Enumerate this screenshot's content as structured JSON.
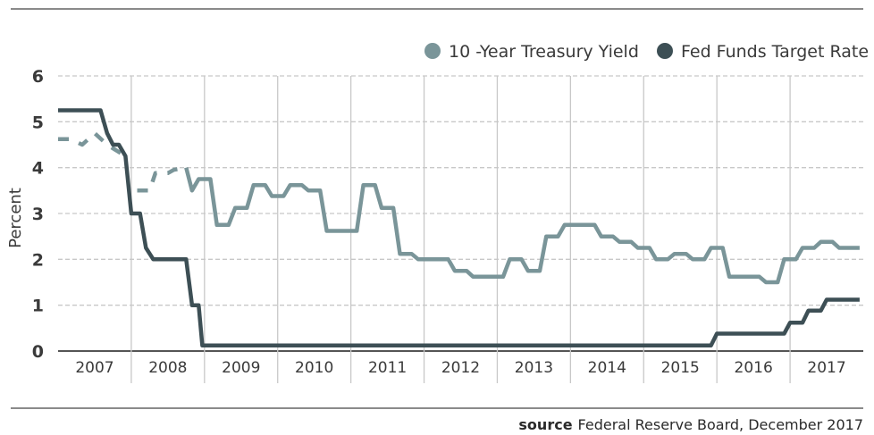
{
  "chart_data": {
    "type": "line",
    "title": "",
    "xlabel": "",
    "ylabel": "Percent",
    "ylim": [
      0,
      6
    ],
    "yticks": [
      "0",
      "1",
      "2",
      "3",
      "4",
      "5",
      "6"
    ],
    "x_range": [
      2007.0,
      2018.0
    ],
    "categories": [
      "2007",
      "2008",
      "2009",
      "2010",
      "2011",
      "2012",
      "2013",
      "2014",
      "2015",
      "2016",
      "2017"
    ],
    "grid": true,
    "legend_position": "top-right",
    "colors": {
      "treasury": "#7a9599",
      "fedfunds": "#3d4f55",
      "grid": "#c8c8c8",
      "axis": "#555555"
    },
    "series": [
      {
        "name": "10 -Year Treasury Yield",
        "key": "treasury",
        "segments": [
          {
            "style": "dashed",
            "points": [
              [
                2007.0,
                4.62
              ],
              [
                2007.17,
                4.62
              ],
              [
                2007.33,
                4.5
              ],
              [
                2007.5,
                4.75
              ],
              [
                2007.67,
                4.5
              ],
              [
                2007.92,
                4.25
              ]
            ]
          },
          {
            "style": "dashed",
            "points": [
              [
                2008.08,
                3.5
              ],
              [
                2008.25,
                3.5
              ],
              [
                2008.33,
                3.88
              ],
              [
                2008.5,
                3.88
              ],
              [
                2008.58,
                3.95
              ],
              [
                2008.75,
                4.0
              ]
            ]
          },
          {
            "style": "solid",
            "points": [
              [
                2008.75,
                4.0
              ],
              [
                2008.83,
                3.5
              ],
              [
                2008.92,
                3.75
              ],
              [
                2009.08,
                3.75
              ],
              [
                2009.17,
                2.75
              ],
              [
                2009.33,
                2.75
              ],
              [
                2009.42,
                3.12
              ],
              [
                2009.58,
                3.12
              ],
              [
                2009.67,
                3.62
              ],
              [
                2009.83,
                3.62
              ],
              [
                2009.92,
                3.38
              ],
              [
                2010.08,
                3.38
              ],
              [
                2010.17,
                3.62
              ],
              [
                2010.33,
                3.62
              ],
              [
                2010.42,
                3.5
              ],
              [
                2010.58,
                3.5
              ],
              [
                2010.67,
                2.62
              ],
              [
                2011.08,
                2.62
              ],
              [
                2011.17,
                3.62
              ],
              [
                2011.33,
                3.62
              ],
              [
                2011.42,
                3.12
              ],
              [
                2011.58,
                3.12
              ],
              [
                2011.67,
                2.12
              ],
              [
                2011.83,
                2.12
              ],
              [
                2011.92,
                2.0
              ],
              [
                2012.33,
                2.0
              ],
              [
                2012.42,
                1.75
              ],
              [
                2012.58,
                1.75
              ],
              [
                2012.67,
                1.62
              ],
              [
                2013.08,
                1.62
              ],
              [
                2013.17,
                2.0
              ],
              [
                2013.33,
                2.0
              ],
              [
                2013.42,
                1.75
              ],
              [
                2013.58,
                1.75
              ],
              [
                2013.67,
                2.5
              ],
              [
                2013.83,
                2.5
              ],
              [
                2013.92,
                2.75
              ],
              [
                2014.33,
                2.75
              ],
              [
                2014.42,
                2.5
              ],
              [
                2014.58,
                2.5
              ],
              [
                2014.67,
                2.38
              ],
              [
                2014.83,
                2.38
              ],
              [
                2014.92,
                2.25
              ],
              [
                2015.08,
                2.25
              ],
              [
                2015.17,
                2.0
              ],
              [
                2015.33,
                2.0
              ],
              [
                2015.42,
                2.12
              ],
              [
                2015.58,
                2.12
              ],
              [
                2015.67,
                2.0
              ],
              [
                2015.83,
                2.0
              ],
              [
                2015.92,
                2.25
              ],
              [
                2016.08,
                2.25
              ],
              [
                2016.17,
                1.62
              ],
              [
                2016.58,
                1.62
              ],
              [
                2016.67,
                1.5
              ],
              [
                2016.83,
                1.5
              ],
              [
                2016.92,
                2.0
              ],
              [
                2017.08,
                2.0
              ],
              [
                2017.17,
                2.25
              ],
              [
                2017.33,
                2.25
              ],
              [
                2017.42,
                2.38
              ],
              [
                2017.58,
                2.38
              ],
              [
                2017.67,
                2.25
              ],
              [
                2017.95,
                2.25
              ]
            ]
          }
        ]
      },
      {
        "name": "Fed Funds Target Rate",
        "key": "fedfunds",
        "segments": [
          {
            "style": "solid",
            "points": [
              [
                2007.0,
                5.25
              ],
              [
                2007.58,
                5.25
              ],
              [
                2007.67,
                4.75
              ],
              [
                2007.75,
                4.5
              ],
              [
                2007.83,
                4.5
              ],
              [
                2007.92,
                4.25
              ],
              [
                2008.0,
                3.0
              ],
              [
                2008.12,
                3.0
              ],
              [
                2008.2,
                2.25
              ],
              [
                2008.3,
                2.0
              ],
              [
                2008.75,
                2.0
              ],
              [
                2008.83,
                1.0
              ],
              [
                2008.92,
                1.0
              ],
              [
                2008.97,
                0.12
              ],
              [
                2015.92,
                0.12
              ],
              [
                2016.0,
                0.38
              ],
              [
                2016.92,
                0.38
              ],
              [
                2017.0,
                0.62
              ],
              [
                2017.17,
                0.62
              ],
              [
                2017.25,
                0.88
              ],
              [
                2017.42,
                0.88
              ],
              [
                2017.5,
                1.12
              ],
              [
                2017.95,
                1.12
              ]
            ]
          }
        ]
      }
    ]
  },
  "source": {
    "label": "source",
    "text": "Federal Reserve Board, December 2017"
  }
}
